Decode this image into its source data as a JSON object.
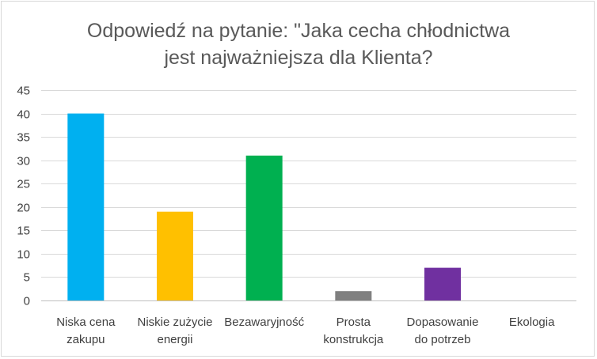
{
  "chart_data": {
    "type": "bar",
    "title_lines": [
      "Odpowiedź na pytanie: \"Jaka cecha chłodnictwa",
      "jest najważniejsza dla Klienta?"
    ],
    "categories": [
      [
        "Niska cena",
        "zakupu"
      ],
      [
        "Niskie zużycie",
        "energii"
      ],
      [
        "Bezawaryjność"
      ],
      [
        "Prosta",
        "konstrukcja"
      ],
      [
        "Dopasowanie",
        "do potrzeb"
      ],
      [
        "Ekologia"
      ]
    ],
    "values": [
      40,
      19,
      31,
      2,
      7,
      0
    ],
    "colors": [
      "#00b0f0",
      "#ffc000",
      "#00b050",
      "#808080",
      "#7030a0",
      "#5b9bd5"
    ],
    "ylim": [
      0,
      45
    ],
    "yticks": [
      0,
      5,
      10,
      15,
      20,
      25,
      30,
      35,
      40,
      45
    ],
    "grid": true,
    "legend": "none",
    "xlabel": "",
    "ylabel": ""
  }
}
